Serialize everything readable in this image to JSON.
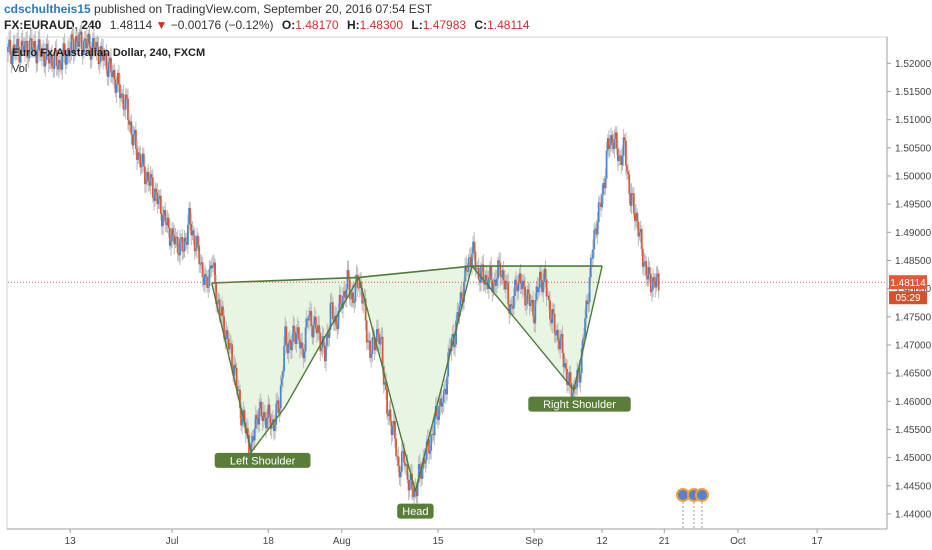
{
  "header": {
    "username": "cdschultheis15",
    "published_text": "published on TradingView.com, September 20, 2016 07:54 EST",
    "symbol": "FX:EURAUD, 240",
    "last_price": "1.48114",
    "change_arrow": "▼",
    "change": "−0.00176 (−0.12%)",
    "open_label": "O:",
    "open": "1.48170",
    "high_label": "H:",
    "high": "1.48300",
    "low_label": "L:",
    "low": "1.47983",
    "close_label": "C:",
    "close": "1.48114"
  },
  "colors": {
    "up": "#4a86d4",
    "down": "#d55a3a",
    "pattern_line": "#4f7a3a",
    "pattern_fill": "#e6f4e0",
    "label_bg": "#5a7d3a",
    "price_line": "#e05a3a",
    "price_tag": "#e05a3a",
    "timer_tag": "#d6502e"
  },
  "chart_data": {
    "type": "line",
    "title": "Euro Fx/Australian Dollar, 240, FXCM",
    "indicator": "Vol",
    "y_ticks": [
      "1.52000",
      "1.51500",
      "1.51000",
      "1.50500",
      "1.50000",
      "1.49500",
      "1.49000",
      "1.48500",
      "1.48000",
      "1.47500",
      "1.47000",
      "1.46500",
      "1.46000",
      "1.45500",
      "1.45000",
      "1.44500",
      "1.44000"
    ],
    "ylim": [
      1.4375,
      1.5245
    ],
    "x_ticks": [
      "13",
      "Jul",
      "18",
      "Aug",
      "15",
      "Sep",
      "12",
      "21",
      "Oct",
      "17"
    ],
    "x_tick_index": [
      11,
      29,
      46,
      59,
      76,
      93,
      105,
      116,
      129,
      143
    ],
    "x_range": [
      0,
      155
    ],
    "series": [
      {
        "values": [
          [
            0,
            1.522
          ],
          [
            4,
            1.523
          ],
          [
            9,
            1.52
          ],
          [
            12,
            1.524
          ],
          [
            15,
            1.523
          ],
          [
            17,
            1.521
          ],
          [
            19,
            1.517
          ],
          [
            21,
            1.512
          ],
          [
            22,
            1.507
          ],
          [
            24,
            1.501
          ],
          [
            26,
            1.497
          ],
          [
            27,
            1.494
          ],
          [
            29,
            1.489
          ],
          [
            31,
            1.487
          ],
          [
            32,
            1.492
          ],
          [
            34,
            1.485
          ],
          [
            35,
            1.48
          ],
          [
            36,
            1.485
          ],
          [
            37,
            1.478
          ],
          [
            39,
            1.47
          ],
          [
            40,
            1.466
          ],
          [
            41,
            1.459
          ],
          [
            42,
            1.455
          ],
          [
            43,
            1.451
          ],
          [
            44,
            1.458
          ],
          [
            46,
            1.457
          ],
          [
            47,
            1.456
          ],
          [
            48,
            1.46
          ],
          [
            49,
            1.471
          ],
          [
            50,
            1.47
          ],
          [
            51,
            1.473
          ],
          [
            52,
            1.468
          ],
          [
            53,
            1.475
          ],
          [
            55,
            1.472
          ],
          [
            56,
            1.468
          ],
          [
            57,
            1.476
          ],
          [
            58,
            1.474
          ],
          [
            59,
            1.478
          ],
          [
            60,
            1.481
          ],
          [
            61,
            1.478
          ],
          [
            62,
            1.482
          ],
          [
            63,
            1.476
          ],
          [
            64,
            1.468
          ],
          [
            65,
            1.472
          ],
          [
            66,
            1.47
          ],
          [
            67,
            1.458
          ],
          [
            68,
            1.456
          ],
          [
            69,
            1.448
          ],
          [
            70,
            1.45
          ],
          [
            71,
            1.445
          ],
          [
            72,
            1.444
          ],
          [
            73,
            1.448
          ],
          [
            74,
            1.451
          ],
          [
            75,
            1.454
          ],
          [
            76,
            1.459
          ],
          [
            77,
            1.46
          ],
          [
            78,
            1.469
          ],
          [
            79,
            1.472
          ],
          [
            80,
            1.478
          ],
          [
            81,
            1.483
          ],
          [
            82,
            1.487
          ],
          [
            83,
            1.483
          ],
          [
            84,
            1.482
          ],
          [
            86,
            1.481
          ],
          [
            87,
            1.484
          ],
          [
            89,
            1.476
          ],
          [
            90,
            1.482
          ],
          [
            92,
            1.478
          ],
          [
            93,
            1.476
          ],
          [
            94,
            1.482
          ],
          [
            95,
            1.481
          ],
          [
            96,
            1.475
          ],
          [
            97,
            1.472
          ],
          [
            98,
            1.469
          ],
          [
            99,
            1.463
          ],
          [
            100,
            1.462
          ],
          [
            101,
            1.465
          ],
          [
            102,
            1.474
          ],
          [
            103,
            1.484
          ],
          [
            104,
            1.492
          ],
          [
            105,
            1.496
          ],
          [
            106,
            1.505
          ],
          [
            107,
            1.507
          ],
          [
            108,
            1.503
          ],
          [
            109,
            1.505
          ],
          [
            110,
            1.496
          ],
          [
            111,
            1.493
          ],
          [
            112,
            1.487
          ],
          [
            113,
            1.482
          ],
          [
            114,
            1.481
          ],
          [
            115,
            1.481
          ]
        ]
      }
    ],
    "current_price": "1.48114",
    "countdown": "05:29",
    "annotations": [
      {
        "label": "Left Shoulder",
        "x": 45,
        "y": 1.4495
      },
      {
        "label": "Head",
        "x": 72,
        "y": 1.4405
      },
      {
        "label": "Right Shoulder",
        "x": 101,
        "y": 1.4595
      }
    ],
    "pattern": {
      "neckline": [
        [
          36,
          1.481
        ],
        [
          62,
          1.482
        ],
        [
          82,
          1.484
        ],
        [
          105,
          1.484
        ]
      ],
      "left_shoulder": [
        [
          36,
          1.481
        ],
        [
          43,
          1.451
        ],
        [
          49,
          1.459
        ],
        [
          62,
          1.482
        ]
      ],
      "head": [
        [
          62,
          1.482
        ],
        [
          72,
          1.444
        ],
        [
          82,
          1.484
        ]
      ],
      "right_shoulder": [
        [
          82,
          1.484
        ],
        [
          100,
          1.462
        ],
        [
          105,
          1.484
        ]
      ]
    }
  }
}
